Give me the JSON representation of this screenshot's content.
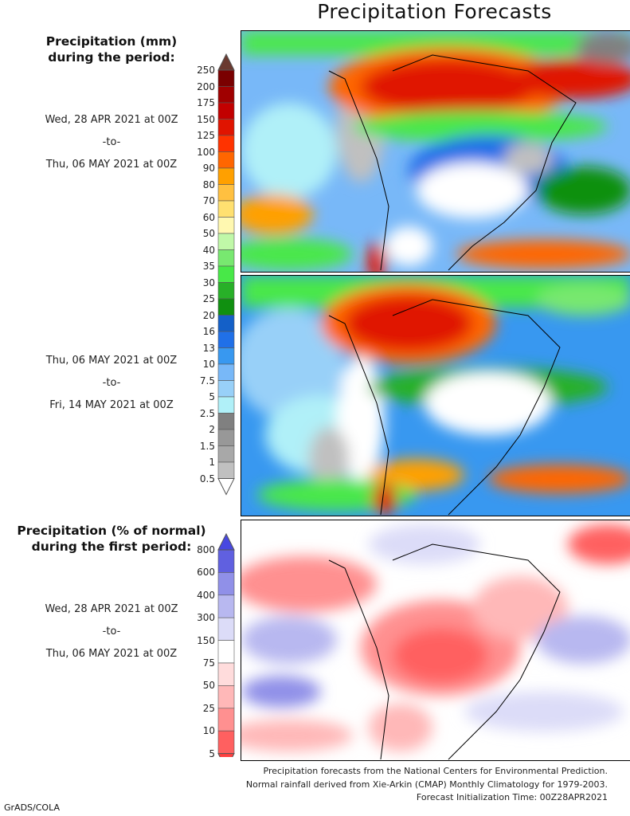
{
  "title": "Precipitation Forecasts",
  "precip_legend": {
    "title_line1": "Precipitation (mm)",
    "title_line2": "during the period:",
    "labels": [
      "250",
      "200",
      "175",
      "150",
      "125",
      "100",
      "90",
      "80",
      "70",
      "60",
      "50",
      "40",
      "35",
      "30",
      "25",
      "20",
      "16",
      "13",
      "10",
      "7.5",
      "5",
      "2.5",
      "2",
      "1.5",
      "1",
      "0.5"
    ],
    "colors": [
      "#7a0000",
      "#a00000",
      "#c20000",
      "#e01400",
      "#ff3300",
      "#ff6600",
      "#ffa000",
      "#ffc040",
      "#ffe070",
      "#fff8b0",
      "#c0f8a8",
      "#78e870",
      "#48e848",
      "#28b028",
      "#109010",
      "#1460c8",
      "#2070e8",
      "#3898f0",
      "#78b8f8",
      "#98d0f8",
      "#b0f0f8",
      "#808080",
      "#989898",
      "#a8a8a8",
      "#c0c0c0"
    ],
    "top_arrow_color": "#6a3a30",
    "bottom_arrow_color": "#ffffff"
  },
  "period1": {
    "start": "Wed, 28 APR 2021 at 00Z",
    "sep": "-to-",
    "end": "Thu, 06 MAY 2021 at 00Z"
  },
  "period2": {
    "start": "Thu, 06 MAY 2021 at 00Z",
    "sep": "-to-",
    "end": "Fri, 14 MAY 2021 at 00Z"
  },
  "percent_legend": {
    "title_line1": "Precipitation (% of normal)",
    "title_line2": "during the first period:",
    "labels": [
      "800",
      "600",
      "400",
      "300",
      "150",
      "75",
      "50",
      "25",
      "10",
      "5"
    ],
    "colors": [
      "#6060e0",
      "#9090e8",
      "#b8b8f0",
      "#dcdcf8",
      "#ffffff",
      "#ffdcdc",
      "#ffb8b8",
      "#ff9090",
      "#ff6060"
    ],
    "top_arrow_color": "#4848e0",
    "bottom_arrow_color": "#ff4040"
  },
  "period3": {
    "start": "Wed, 28 APR 2021 at 00Z",
    "sep": "-to-",
    "end": "Thu, 06 MAY 2021 at 00Z"
  },
  "footer": {
    "line1": "Precipitation forecasts from the National Centers for Environmental Prediction.",
    "line2": "Normal rainfall derived from Xie-Arkin (CMAP) Monthly Climatology for 1979-2003.",
    "line3": "Forecast Initialization Time: 00Z28APR2021",
    "credit": "GrADS/COLA"
  }
}
